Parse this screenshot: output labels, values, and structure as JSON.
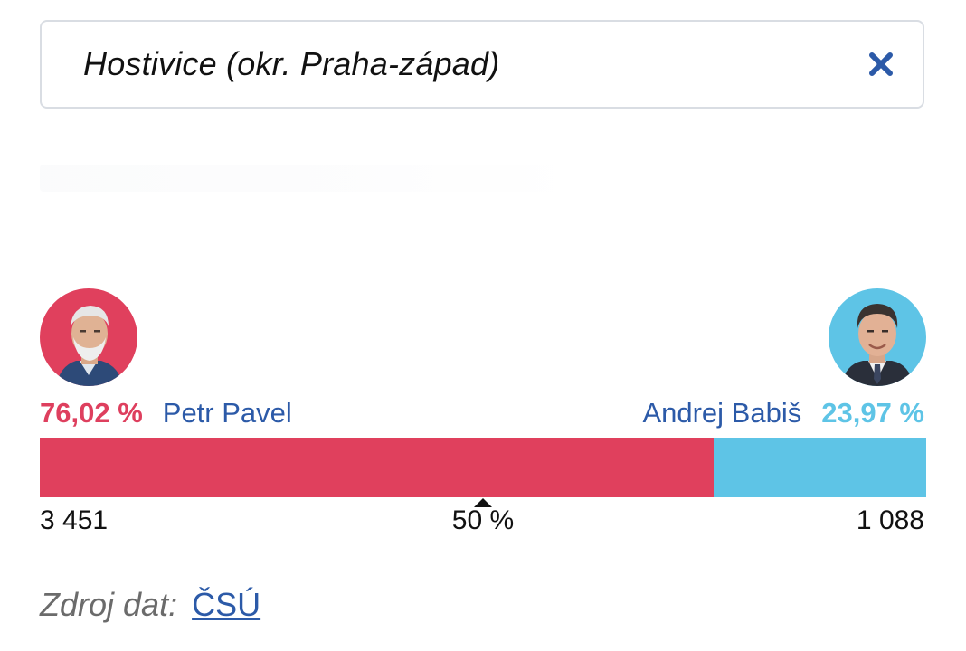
{
  "search": {
    "value": "Hostivice (okr. Praha-západ)",
    "clear_icon": "close-icon"
  },
  "candidates": {
    "left": {
      "name": "Petr Pavel",
      "percent": "76,02 %",
      "share": 0.7602,
      "votes": "3 451",
      "color": "#e0405d",
      "avatar_icon": "portrait-petr-pavel"
    },
    "right": {
      "name": "Andrej Babiš",
      "percent": "23,97 %",
      "share": 0.2397,
      "votes": "1 088",
      "color": "#5ec4e6",
      "avatar_icon": "portrait-andrej-babis"
    }
  },
  "threshold": {
    "label": "50 %"
  },
  "source": {
    "label": "Zdroj dat:",
    "link": "ČSÚ"
  },
  "colors": {
    "name_text": "#2c5aa8",
    "border": "#d9dde3"
  }
}
